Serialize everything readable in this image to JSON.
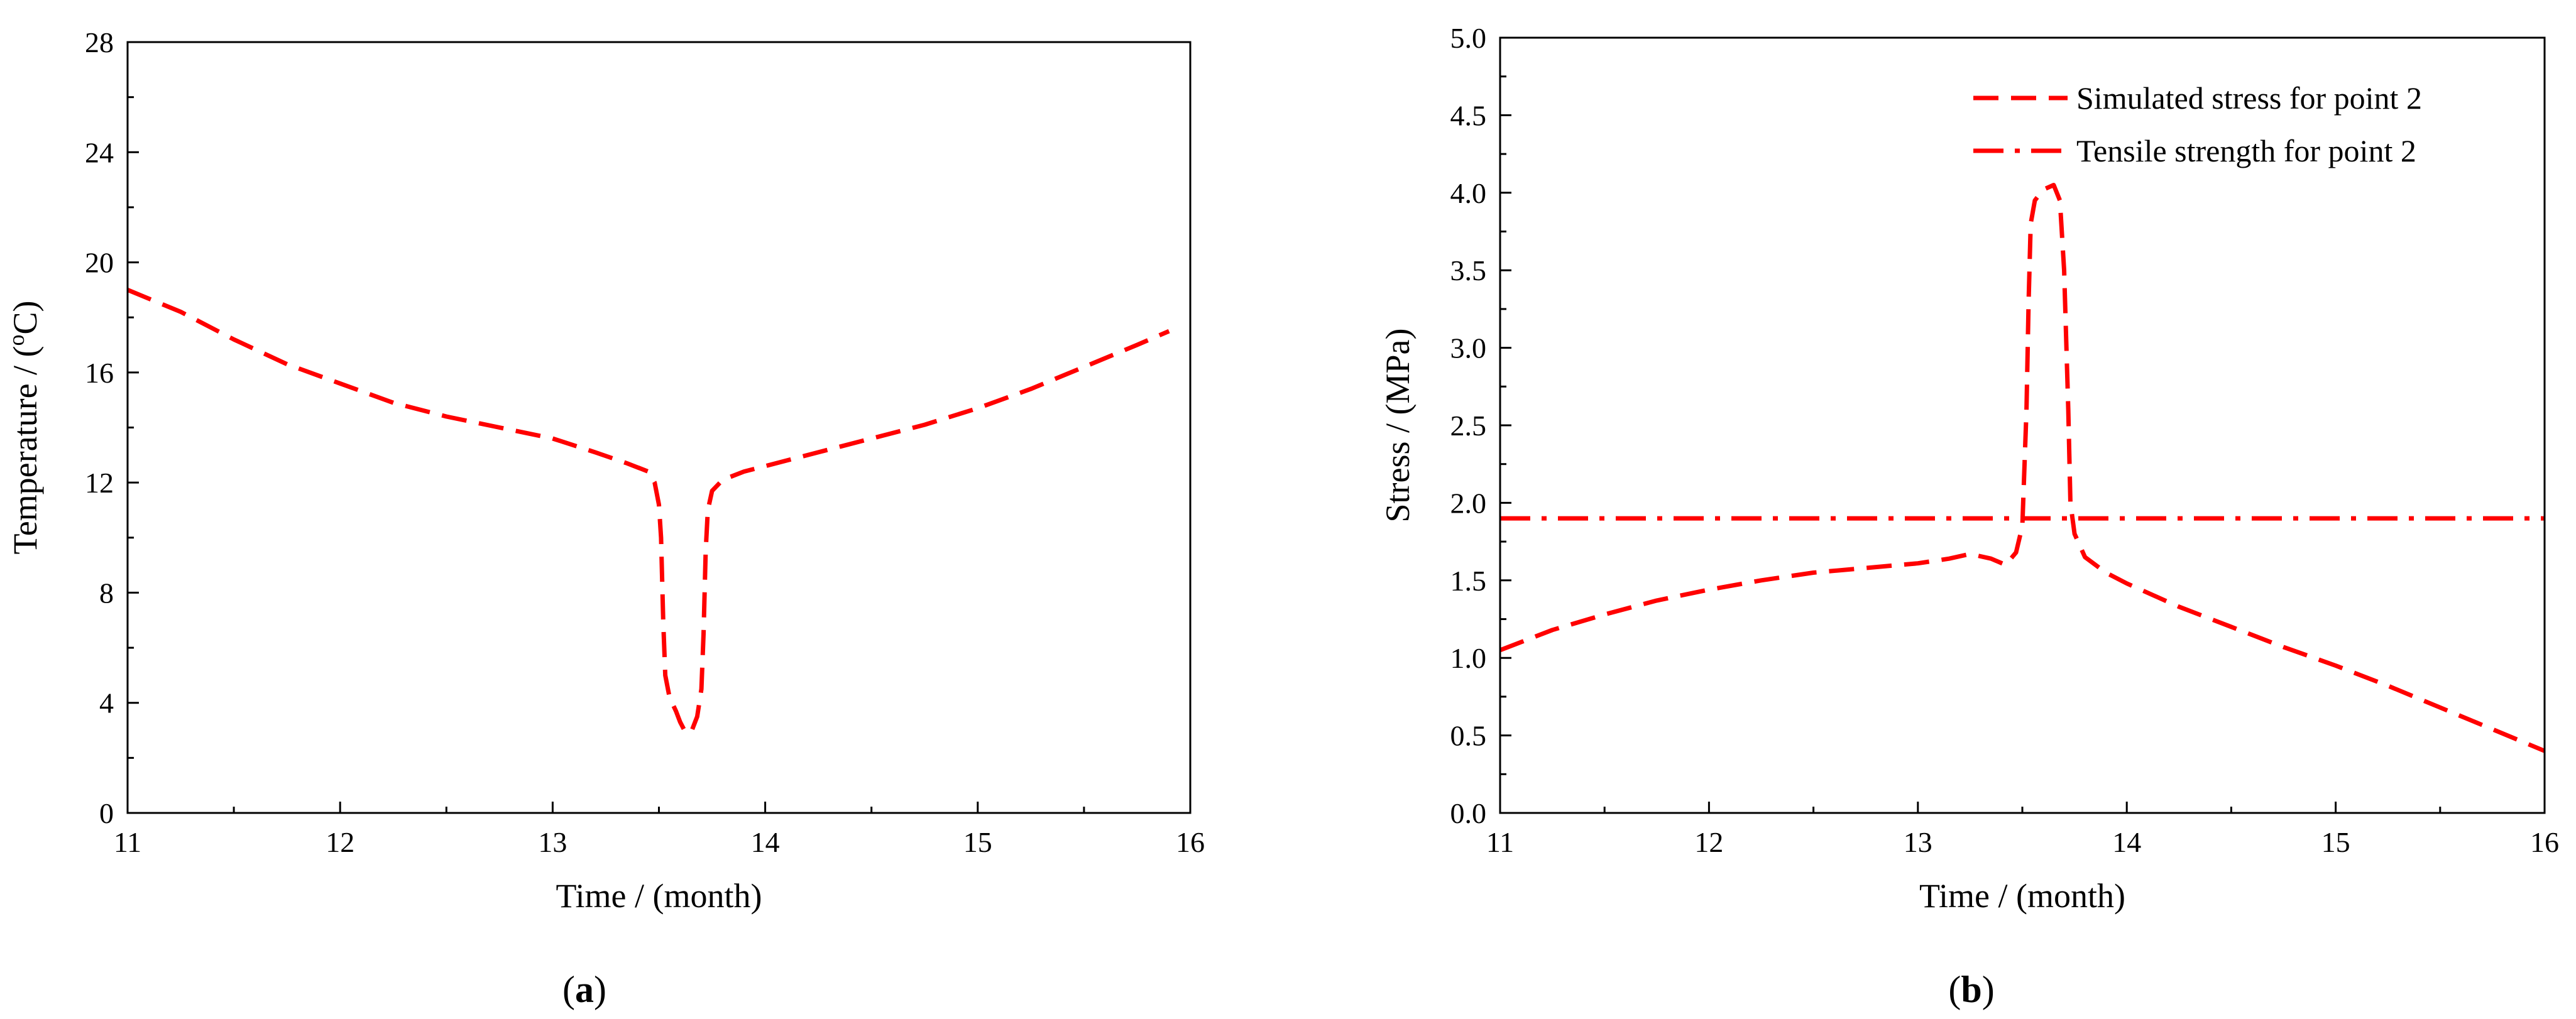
{
  "chart_data": [
    {
      "panel_label": "a",
      "type": "line",
      "xlabel": "Time / (month)",
      "ylabel": "Temperature / (",
      "ylabel_sup": "o",
      "ylabel_unit": "C)",
      "xlim": [
        11,
        16
      ],
      "ylim": [
        0,
        28
      ],
      "xticks": [
        11,
        12,
        13,
        14,
        15,
        16
      ],
      "yticks": [
        0,
        4,
        8,
        12,
        16,
        20,
        24,
        28
      ],
      "grid": false,
      "series": [
        {
          "color": "#ff0000",
          "dash": "dashed",
          "x": [
            11.0,
            11.25,
            11.5,
            11.75,
            12.0,
            12.25,
            12.5,
            12.75,
            13.0,
            13.2,
            13.35,
            13.45,
            13.48,
            13.5,
            13.51,
            13.52,
            13.53,
            13.55,
            13.58,
            13.6,
            13.62,
            13.65,
            13.68,
            13.7,
            13.71,
            13.72,
            13.73,
            13.75,
            13.8,
            13.9,
            14.0,
            14.25,
            14.5,
            14.75,
            15.0,
            15.25,
            15.5,
            15.75,
            15.9
          ],
          "y": [
            19.0,
            18.2,
            17.2,
            16.3,
            15.6,
            14.9,
            14.4,
            14.0,
            13.6,
            13.1,
            12.7,
            12.4,
            12.0,
            11.2,
            10.0,
            7.0,
            5.0,
            4.2,
            3.7,
            3.3,
            3.0,
            2.9,
            3.5,
            4.5,
            6.5,
            9.5,
            11.0,
            11.7,
            12.1,
            12.4,
            12.6,
            13.1,
            13.6,
            14.1,
            14.7,
            15.4,
            16.2,
            17.0,
            17.5
          ]
        }
      ]
    },
    {
      "panel_label": "b",
      "type": "line",
      "xlabel": "Time / (month)",
      "ylabel": "Stress / (MPa)",
      "xlim": [
        11,
        16
      ],
      "ylim": [
        0.0,
        5.0
      ],
      "xticks": [
        11,
        12,
        13,
        14,
        15,
        16
      ],
      "yticks": [
        "0.0",
        "0.5",
        "1.0",
        "1.5",
        "2.0",
        "2.5",
        "3.0",
        "3.5",
        "4.0",
        "4.5",
        "5.0"
      ],
      "grid": false,
      "legend_position": "top-right",
      "series": [
        {
          "name": "Simulated stress for point 2",
          "color": "#ff0000",
          "dash": "dashed",
          "x": [
            11.0,
            11.25,
            11.5,
            11.75,
            12.0,
            12.25,
            12.5,
            12.75,
            13.0,
            13.15,
            13.25,
            13.35,
            13.42,
            13.47,
            13.5,
            13.52,
            13.53,
            13.54,
            13.56,
            13.6,
            13.65,
            13.68,
            13.7,
            13.72,
            13.73,
            13.75,
            13.8,
            13.9,
            14.0,
            14.25,
            14.5,
            14.75,
            15.0,
            15.25,
            15.5,
            15.75,
            16.0
          ],
          "y": [
            1.05,
            1.18,
            1.28,
            1.37,
            1.44,
            1.5,
            1.55,
            1.58,
            1.61,
            1.64,
            1.67,
            1.64,
            1.6,
            1.68,
            1.85,
            2.6,
            3.3,
            3.8,
            3.95,
            4.02,
            4.05,
            3.95,
            3.5,
            2.6,
            2.0,
            1.8,
            1.65,
            1.55,
            1.48,
            1.33,
            1.2,
            1.07,
            0.95,
            0.82,
            0.68,
            0.54,
            0.4
          ]
        },
        {
          "name": "Tensile strength for point 2",
          "color": "#ff0000",
          "dash": "dashdot",
          "x": [
            11.0,
            16.0
          ],
          "y": [
            1.9,
            1.9
          ]
        }
      ]
    }
  ]
}
